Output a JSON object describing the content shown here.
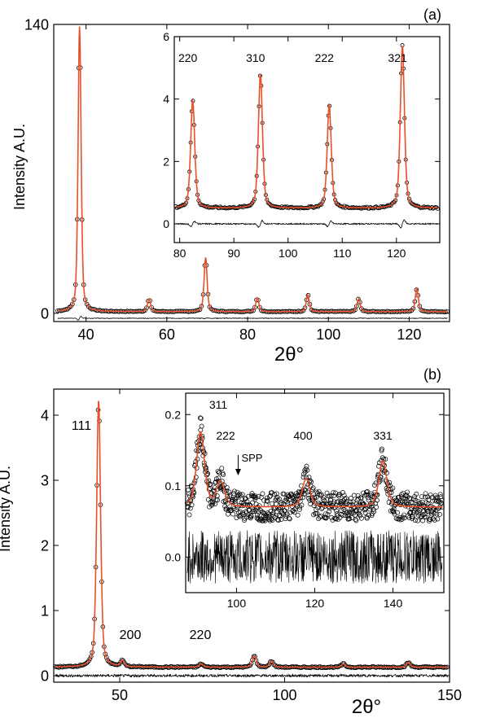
{
  "chart_data": [
    {
      "panel": "(a)",
      "type": "line",
      "xlabel": "2θ°",
      "ylabel": "Intensity  A.U.",
      "xlim": [
        32,
        130
      ],
      "ylim": [
        -4,
        140
      ],
      "x_ticks": [
        40,
        60,
        80,
        100,
        120
      ],
      "y_ticks": [
        0,
        140
      ],
      "peaks": [
        {
          "x": 38.4,
          "y": 139
        },
        {
          "x": 55.6,
          "y": 7.0
        },
        {
          "x": 69.6,
          "y": 27.0
        },
        {
          "x": 82.4,
          "y": 7.5
        },
        {
          "x": 94.9,
          "y": 9.0
        },
        {
          "x": 107.5,
          "y": 7.0
        },
        {
          "x": 121.9,
          "y": 12.0
        }
      ],
      "inset": {
        "type": "line",
        "xlim": [
          79,
          128
        ],
        "ylim": [
          -0.6,
          6
        ],
        "x_ticks": [
          80,
          90,
          100,
          110,
          120
        ],
        "y_ticks": [
          0,
          2,
          4,
          6
        ],
        "peaks": [
          {
            "label": "220",
            "x": 82.4,
            "y": 3.95
          },
          {
            "label": "310",
            "x": 94.9,
            "y": 4.8
          },
          {
            "label": "222",
            "x": 107.6,
            "y": 3.8
          },
          {
            "label": "321",
            "x": 121.1,
            "y": 5.7
          }
        ],
        "baseline": 0.5
      }
    },
    {
      "panel": "(b)",
      "type": "line",
      "xlabel": "2θ°",
      "ylabel": "Intensity  A.U.",
      "xlim": [
        30,
        150
      ],
      "ylim": [
        -0.1,
        4.4
      ],
      "x_ticks": [
        50,
        100,
        150
      ],
      "y_ticks": [
        0,
        1,
        2,
        3,
        4
      ],
      "peaks": [
        {
          "label": "111",
          "x": 43.6,
          "y": 4.22
        },
        {
          "label": "200",
          "x": 50.8,
          "y": 0.22
        },
        {
          "label": "220",
          "x": 74.7,
          "y": 0.18
        },
        {
          "label": "",
          "x": 90.8,
          "y": 0.3
        },
        {
          "label": "",
          "x": 96.0,
          "y": 0.22
        },
        {
          "label": "",
          "x": 117.8,
          "y": 0.18
        },
        {
          "label": "",
          "x": 137.5,
          "y": 0.2
        }
      ],
      "baseline": 0.13,
      "inset": {
        "type": "scatter",
        "xlim": [
          87,
          153
        ],
        "ylim": [
          -0.05,
          0.23
        ],
        "x_ticks": [
          100,
          120,
          140
        ],
        "y_ticks": [
          0.0,
          0.1,
          0.2
        ],
        "peaks": [
          {
            "label": "311",
            "x": 90.8,
            "y": 0.175
          },
          {
            "label": "222",
            "x": 95.9,
            "y": 0.105
          },
          {
            "label": "400",
            "x": 117.8,
            "y": 0.11
          },
          {
            "label": "331",
            "x": 137.4,
            "y": 0.135
          }
        ],
        "baseline": 0.07,
        "annotation": "SPP",
        "annotation_x": 100
      }
    }
  ],
  "colors": {
    "data": "#000000",
    "fit": "#e8502a",
    "difference": "#000000"
  }
}
